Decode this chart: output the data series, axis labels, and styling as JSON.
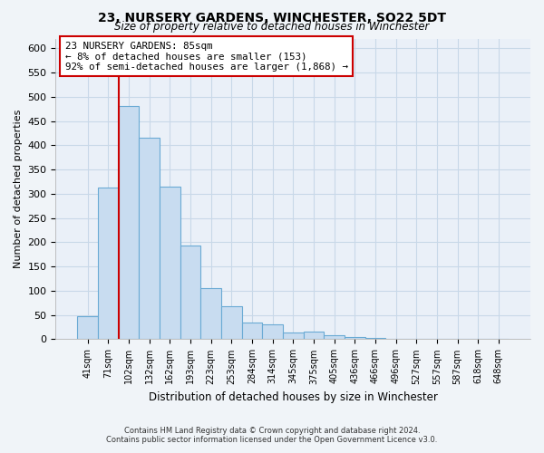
{
  "title": "23, NURSERY GARDENS, WINCHESTER, SO22 5DT",
  "subtitle": "Size of property relative to detached houses in Winchester",
  "xlabel": "Distribution of detached houses by size in Winchester",
  "ylabel": "Number of detached properties",
  "bar_labels": [
    "41sqm",
    "71sqm",
    "102sqm",
    "132sqm",
    "162sqm",
    "193sqm",
    "223sqm",
    "253sqm",
    "284sqm",
    "314sqm",
    "345sqm",
    "375sqm",
    "405sqm",
    "436sqm",
    "466sqm",
    "496sqm",
    "527sqm",
    "557sqm",
    "587sqm",
    "618sqm",
    "648sqm"
  ],
  "bar_values": [
    47,
    312,
    480,
    415,
    315,
    193,
    105,
    69,
    35,
    30,
    14,
    15,
    8,
    5,
    2,
    1,
    0,
    0,
    0,
    0,
    0
  ],
  "bar_color": "#c8dcf0",
  "bar_edge_color": "#6aaad4",
  "vline_color": "#cc0000",
  "ylim": [
    0,
    620
  ],
  "yticks": [
    0,
    50,
    100,
    150,
    200,
    250,
    300,
    350,
    400,
    450,
    500,
    550,
    600
  ],
  "annotation_title": "23 NURSERY GARDENS: 85sqm",
  "annotation_line1": "← 8% of detached houses are smaller (153)",
  "annotation_line2": "92% of semi-detached houses are larger (1,868) →",
  "annotation_box_color": "#ffffff",
  "annotation_box_edge": "#cc0000",
  "footer_line1": "Contains HM Land Registry data © Crown copyright and database right 2024.",
  "footer_line2": "Contains public sector information licensed under the Open Government Licence v3.0.",
  "background_color": "#f0f4f8",
  "plot_background": "#eaf0f8",
  "grid_color": "#c8d8e8"
}
